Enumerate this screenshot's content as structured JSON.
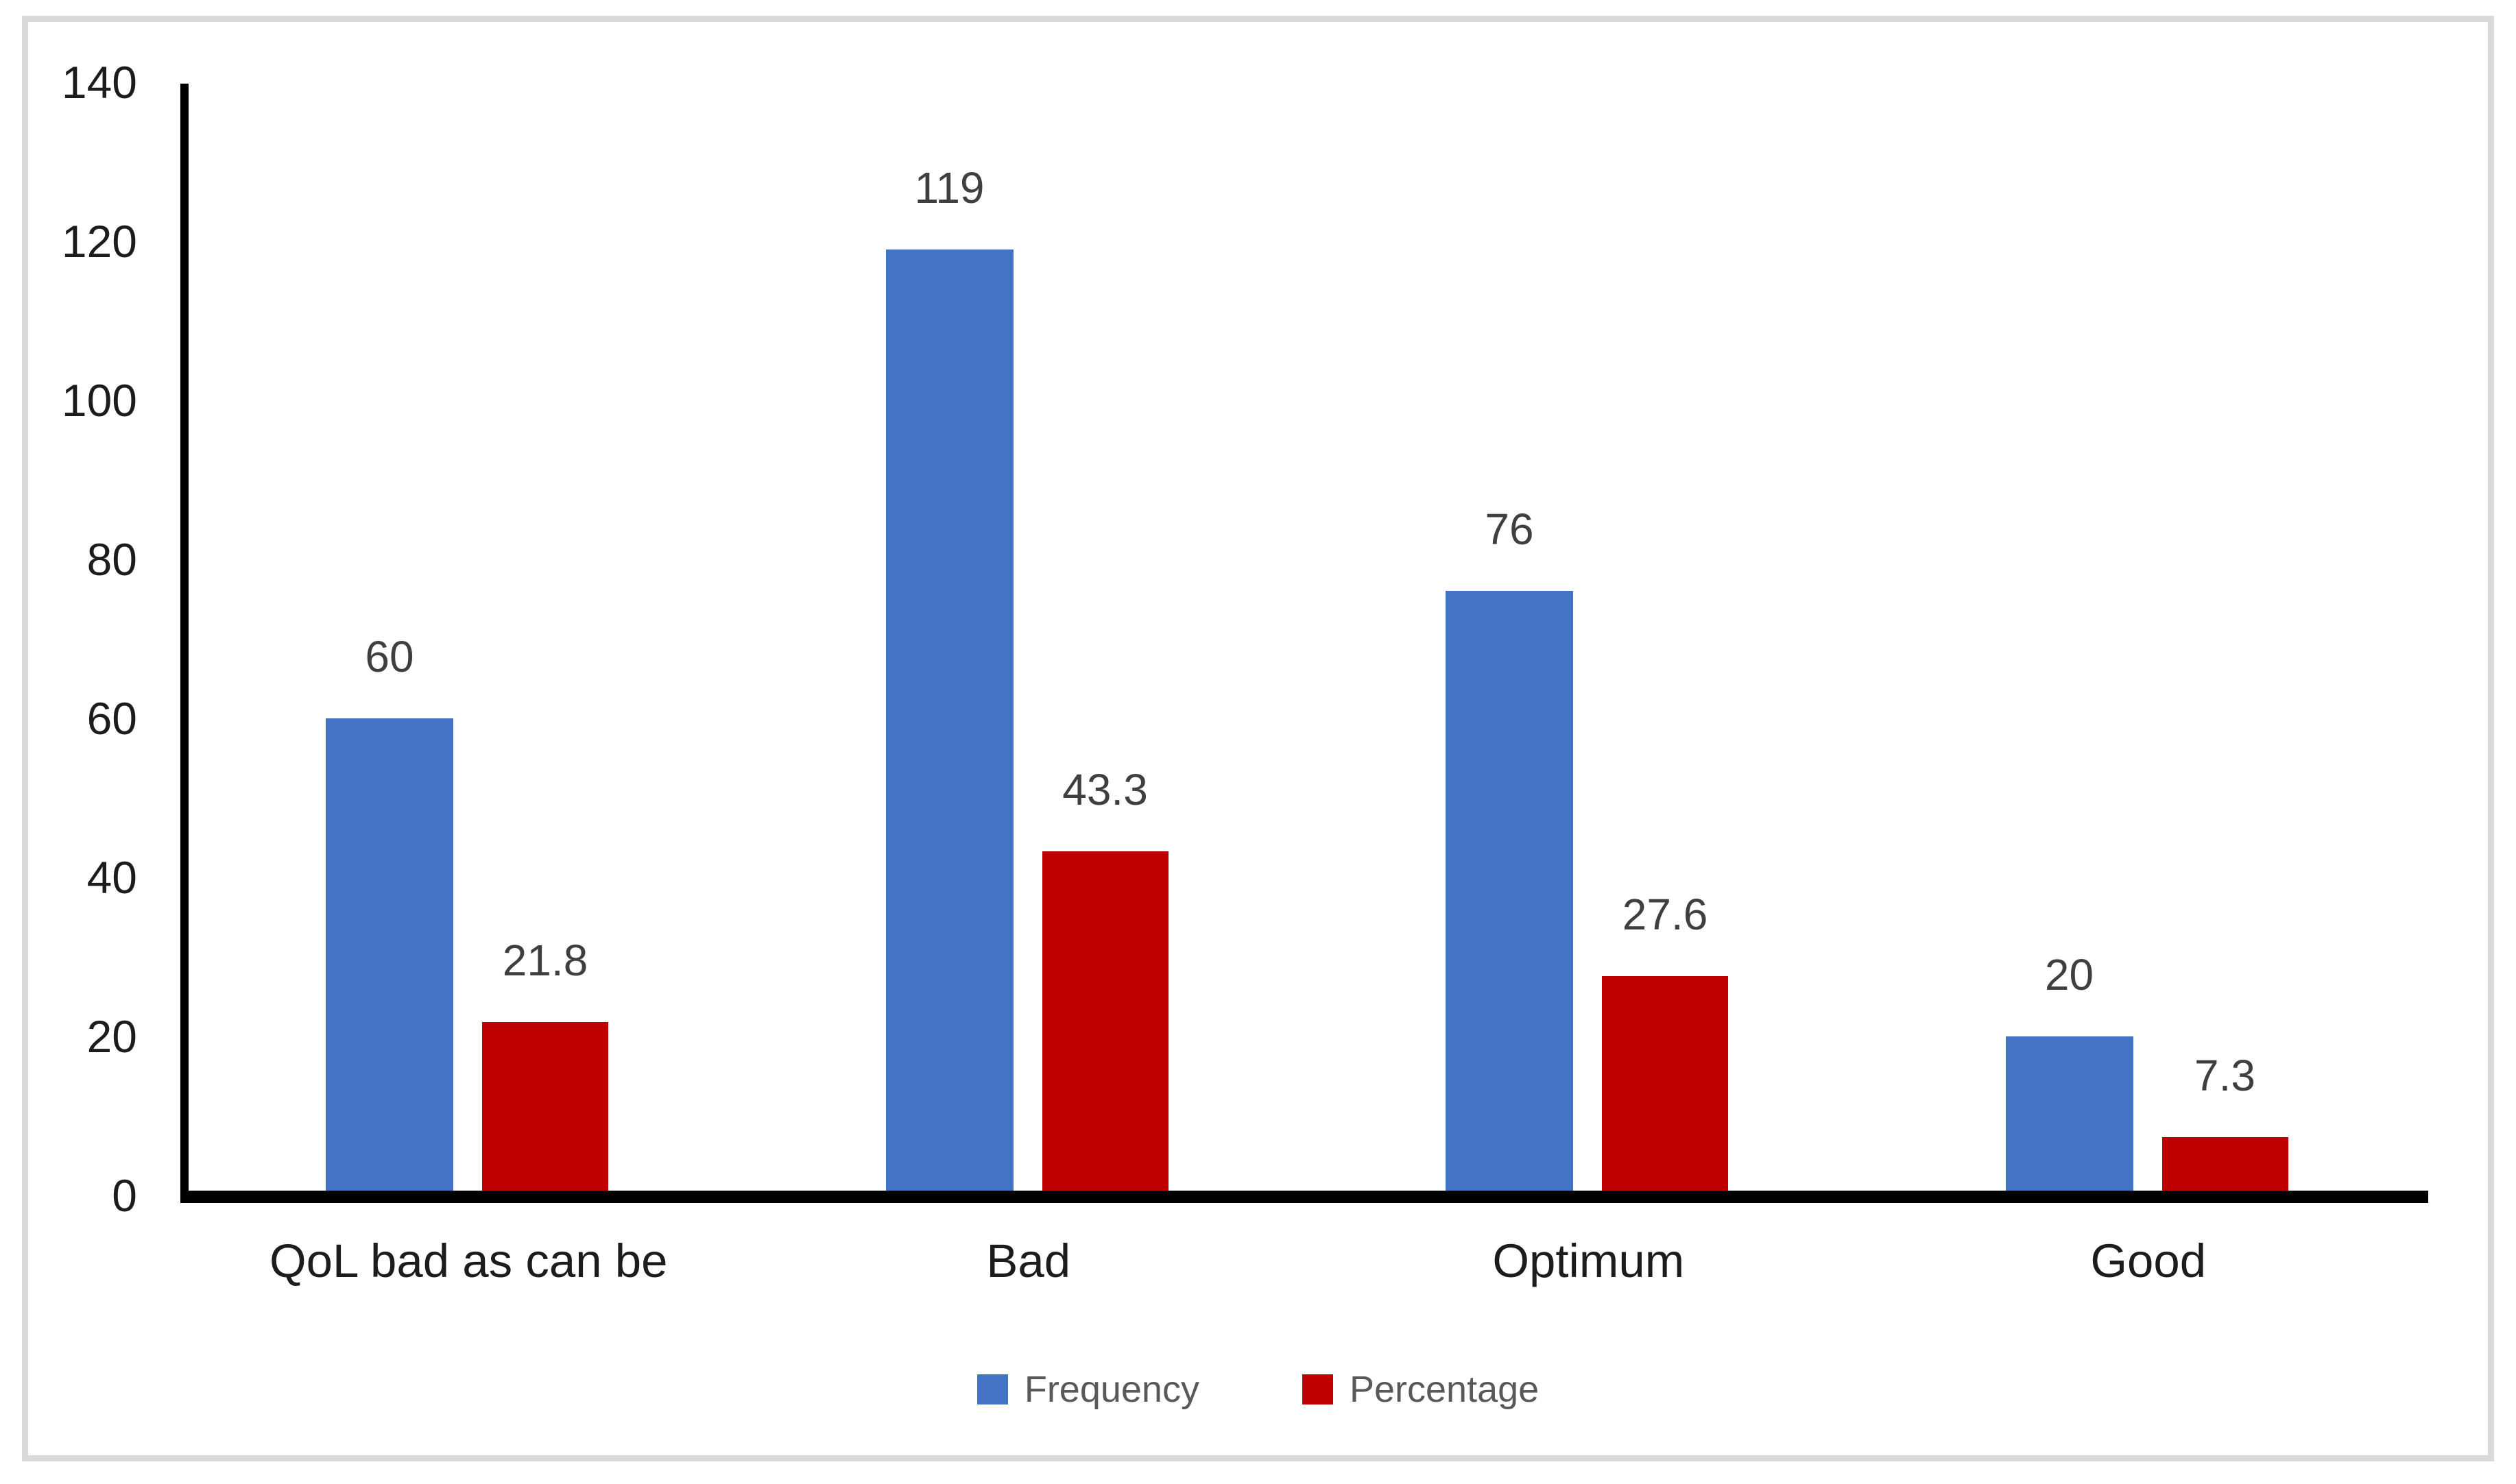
{
  "chart_data": {
    "type": "bar",
    "title": "",
    "categories": [
      "QoL bad as can be",
      "Bad",
      "Optimum",
      "Good"
    ],
    "series": [
      {
        "name": "Frequency",
        "color": "#4472c4",
        "values": [
          60,
          119,
          76,
          20
        ],
        "labels": [
          "60",
          "119",
          "76",
          "20"
        ]
      },
      {
        "name": "Percentage",
        "color": "#c00000",
        "values": [
          21.8,
          43.3,
          27.6,
          7.3
        ],
        "labels": [
          "21.8",
          "43.3",
          "27.6",
          "7.3"
        ]
      }
    ],
    "y_axis": {
      "min": 0,
      "max": 140,
      "step": 20,
      "tick_labels": [
        "0",
        "20",
        "40",
        "60",
        "80",
        "100",
        "120",
        "140"
      ]
    },
    "x_label": "",
    "y_label": "",
    "grid": false,
    "legend_position": "bottom"
  },
  "colors": {
    "frame_border": "#d9d9d9",
    "axis_line": "#000000",
    "tick_text": "#1c1c1c",
    "category_text": "#1c1c1c",
    "data_label_text": "#3f3f3f",
    "legend_text": "#595959",
    "background": "#ffffff"
  }
}
